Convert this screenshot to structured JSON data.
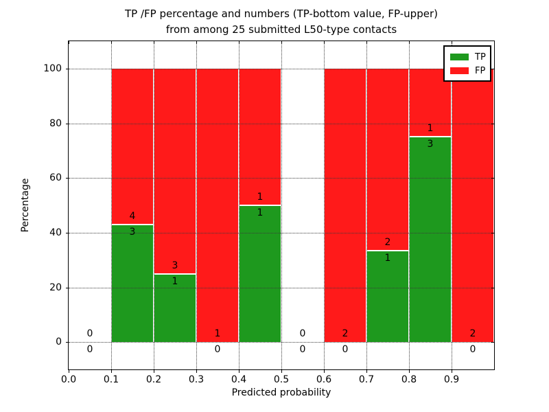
{
  "figure": {
    "title_line1": "TP /FP percentage and numbers (TP-bottom value, FP-upper)",
    "title_line2": "from among 25 submitted L50-type contacts",
    "xlabel": "Predicted probability",
    "ylabel": "Percentage"
  },
  "legend": {
    "items": [
      {
        "label": "TP",
        "color": "#1e991e"
      },
      {
        "label": "FP",
        "color": "#ff1a1a"
      }
    ]
  },
  "chart_data": {
    "type": "bar",
    "stacked": true,
    "title": "TP /FP percentage and numbers (TP-bottom value, FP-upper) from among 25 submitted L50-type contacts",
    "xlabel": "Predicted probability",
    "ylabel": "Percentage",
    "xlim": [
      0,
      1
    ],
    "ylim": [
      -10,
      110
    ],
    "xticks": [
      "0.0",
      "0.1",
      "0.2",
      "0.3",
      "0.4",
      "0.5",
      "0.6",
      "0.7",
      "0.8",
      "0.9"
    ],
    "yticks": [
      0,
      20,
      40,
      60,
      80,
      100
    ],
    "grid": true,
    "grid_style": "dotted",
    "grid_above_bars": true,
    "legend_position": "upper right",
    "total_contacts": 25,
    "series": [
      {
        "name": "TP",
        "color": "#1e991e"
      },
      {
        "name": "FP",
        "color": "#ff1a1a"
      }
    ],
    "bins": [
      {
        "range": [
          0.0,
          0.1
        ],
        "tp": 0,
        "fp": 0,
        "tp_pct": 0,
        "fp_pct": 0
      },
      {
        "range": [
          0.1,
          0.2
        ],
        "tp": 3,
        "fp": 4,
        "tp_pct": 42.857,
        "fp_pct": 57.143
      },
      {
        "range": [
          0.2,
          0.3
        ],
        "tp": 1,
        "fp": 3,
        "tp_pct": 25,
        "fp_pct": 75
      },
      {
        "range": [
          0.3,
          0.4
        ],
        "tp": 0,
        "fp": 1,
        "tp_pct": 0,
        "fp_pct": 100
      },
      {
        "range": [
          0.4,
          0.5
        ],
        "tp": 1,
        "fp": 1,
        "tp_pct": 50,
        "fp_pct": 50
      },
      {
        "range": [
          0.5,
          0.6
        ],
        "tp": 0,
        "fp": 0,
        "tp_pct": 0,
        "fp_pct": 0
      },
      {
        "range": [
          0.6,
          0.7
        ],
        "tp": 0,
        "fp": 2,
        "tp_pct": 0,
        "fp_pct": 100
      },
      {
        "range": [
          0.7,
          0.8
        ],
        "tp": 1,
        "fp": 2,
        "tp_pct": 33.333,
        "fp_pct": 66.667
      },
      {
        "range": [
          0.8,
          0.9
        ],
        "tp": 3,
        "fp": 1,
        "tp_pct": 75,
        "fp_pct": 25
      },
      {
        "range": [
          0.9,
          1.0
        ],
        "tp": 0,
        "fp": 2,
        "tp_pct": 0,
        "fp_pct": 100
      }
    ]
  }
}
